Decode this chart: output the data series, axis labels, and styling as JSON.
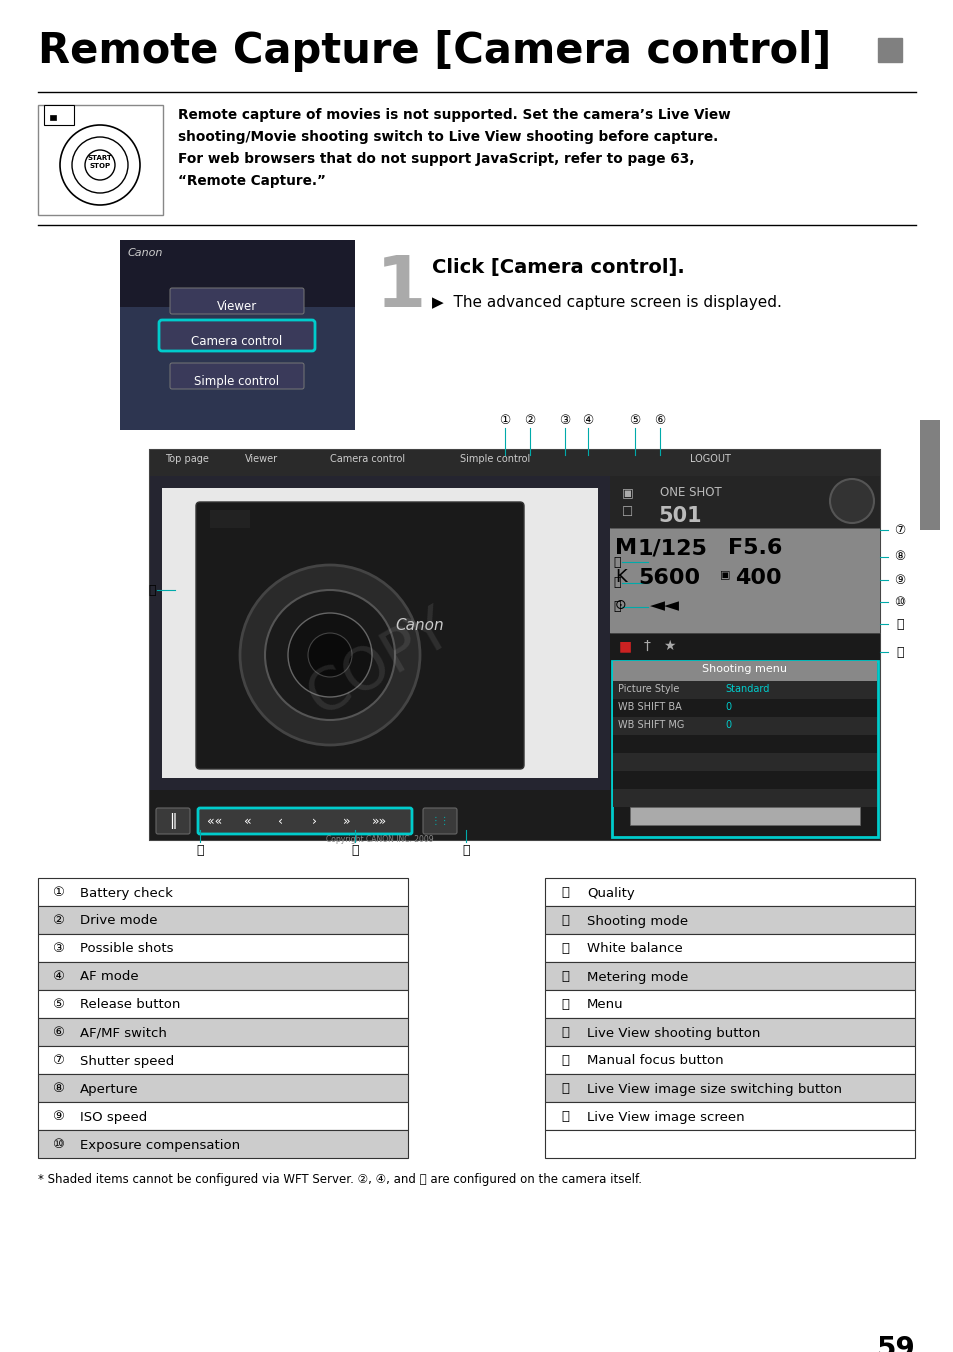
{
  "title": "Remote Capture [Camera control]",
  "title_square_color": "#808080",
  "bg_color": "#ffffff",
  "warning_lines": [
    "Remote capture of movies is not supported. Set the camera’s Live View",
    "shooting/Movie shooting switch to Live View shooting before capture.",
    "For web browsers that do not support JavaScript, refer to page 63,",
    "“Remote Capture.”"
  ],
  "step1_heading": "Click [Camera control].",
  "step1_body": "The advanced capture screen is displayed.",
  "table_left": [
    [
      "①",
      "Battery check",
      false
    ],
    [
      "②",
      "Drive mode",
      true
    ],
    [
      "③",
      "Possible shots",
      false
    ],
    [
      "④",
      "AF mode",
      true
    ],
    [
      "⑤",
      "Release button",
      false
    ],
    [
      "⑥",
      "AF/MF switch",
      true
    ],
    [
      "⑦",
      "Shutter speed",
      false
    ],
    [
      "⑧",
      "Aperture",
      true
    ],
    [
      "⑨",
      "ISO speed",
      false
    ],
    [
      "⑩",
      "Exposure compensation",
      true
    ]
  ],
  "table_right": [
    [
      "⑪",
      "Quality",
      false
    ],
    [
      "⑫",
      "Shooting mode",
      true
    ],
    [
      "⑬",
      "White balance",
      false
    ],
    [
      "⑭",
      "Metering mode",
      true
    ],
    [
      "⑮",
      "Menu",
      false
    ],
    [
      "⑯",
      "Live View shooting button",
      true
    ],
    [
      "⑰",
      "Manual focus button",
      false
    ],
    [
      "⑱",
      "Live View image size switching button",
      true
    ],
    [
      "⑲",
      "Live View image screen",
      false
    ],
    [
      "",
      "",
      false
    ]
  ],
  "footnote": "* Shaded items cannot be configured via WFT Server. ②, ④, and ⑫ are configured on the camera itself.",
  "page_number": "59",
  "side_bar_color": "#808080",
  "cyan_color": "#00cccc",
  "callout_numbers_top": [
    "①②",
    "③④",
    "⑤⑥"
  ],
  "nav_items": [
    "Top page",
    "Viewer",
    "Camera control",
    "Simple control",
    "LOGOUT"
  ],
  "menu_items": [
    [
      "Picture Style",
      "Standard"
    ],
    [
      "WB SHIFT BA",
      "0"
    ],
    [
      "WB SHIFT MG",
      "0"
    ]
  ]
}
